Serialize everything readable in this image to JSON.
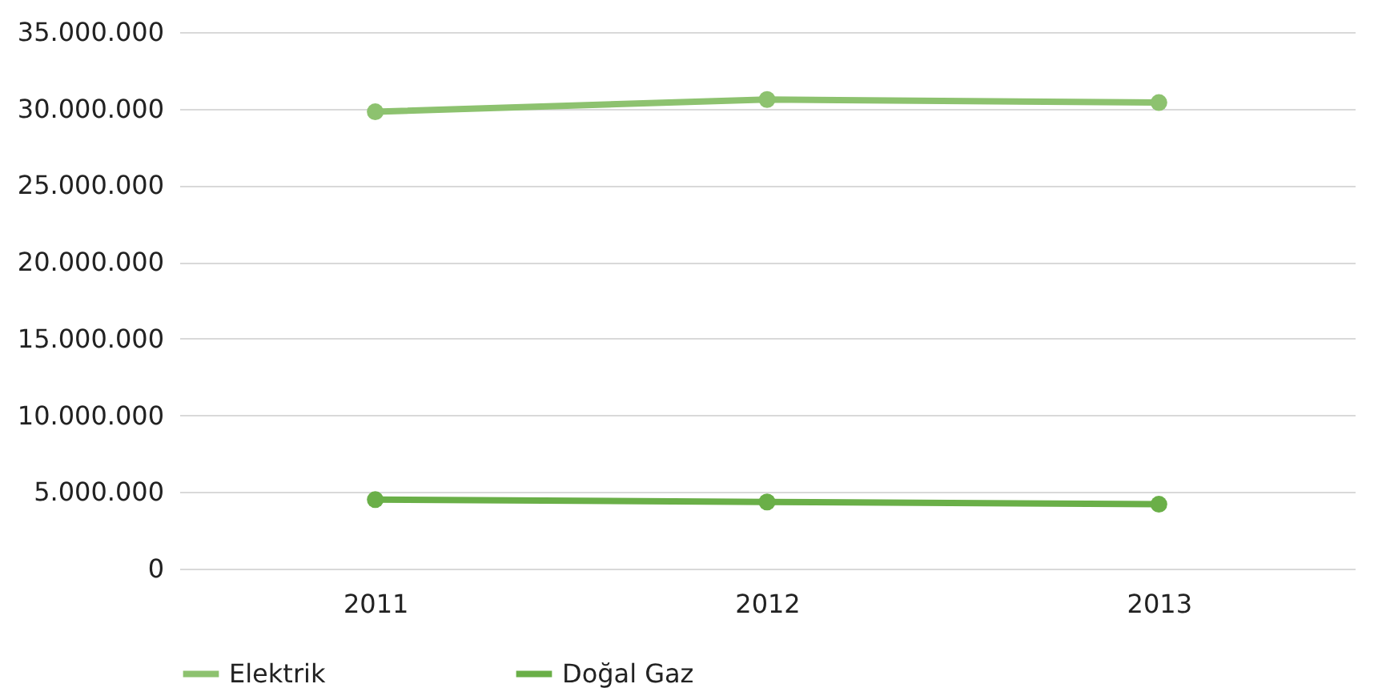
{
  "chart_data": {
    "type": "line",
    "categories": [
      "2011",
      "2012",
      "2013"
    ],
    "series": [
      {
        "name": "Elektrik",
        "color": "#8dc26f",
        "values": [
          29800000,
          30600000,
          30400000
        ]
      },
      {
        "name": "Doğal Gaz",
        "color": "#6aaf48",
        "values": [
          4500000,
          4350000,
          4200000
        ]
      }
    ],
    "ylim": [
      0,
      35000000
    ],
    "yticks": [
      0,
      {
        "value": 5000000,
        "label": "5.000.000"
      },
      {
        "value": 10000000,
        "label": "10.000.000"
      },
      {
        "value": 15000000,
        "label": "15.000.000"
      },
      {
        "value": 20000000,
        "label": "20.000.000"
      },
      {
        "value": 25000000,
        "label": "25.000.000"
      },
      {
        "value": 30000000,
        "label": "30.000.000"
      },
      {
        "value": 35000000,
        "label": "35.000.000"
      }
    ],
    "grid": "y",
    "legend": "bottom",
    "marker": "circle",
    "line_style": "solid"
  }
}
